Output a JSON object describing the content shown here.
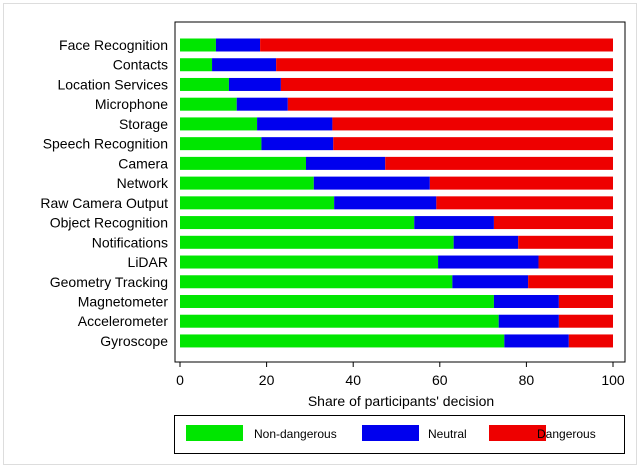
{
  "chart_data": {
    "type": "bar",
    "orientation": "horizontal",
    "stacked": true,
    "categories": [
      "Face Recognition",
      "Contacts",
      "Location Services",
      "Microphone",
      "Storage",
      "Speech Recognition",
      "Camera",
      "Network",
      "Raw Camera Output",
      "Object Recognition",
      "Notifications",
      "LiDAR",
      "Geometry Tracking",
      "Magnetometer",
      "Accelerometer",
      "Gyroscope"
    ],
    "series": [
      {
        "name": "Non-dangerous",
        "color": "#00e600",
        "values": [
          8.3,
          7.4,
          11.3,
          13.1,
          17.8,
          18.8,
          29.1,
          30.9,
          35.6,
          54.1,
          63.2,
          59.6,
          62.9,
          72.5,
          73.6,
          74.9
        ]
      },
      {
        "name": "Neutral",
        "color": "#0000ee",
        "values": [
          10.2,
          14.8,
          12.0,
          11.8,
          17.4,
          16.6,
          18.3,
          26.8,
          23.6,
          18.4,
          14.9,
          23.2,
          17.5,
          15.0,
          13.9,
          14.9
        ]
      },
      {
        "name": "Dangerous",
        "color": "#ee0000",
        "values": [
          81.5,
          77.8,
          76.7,
          75.1,
          64.8,
          64.6,
          52.6,
          42.3,
          40.8,
          27.5,
          21.9,
          17.2,
          19.6,
          12.5,
          12.5,
          10.2
        ]
      }
    ],
    "xlabel": "Share of participants' decision",
    "xlim": [
      0,
      100
    ],
    "xticks": [
      0,
      20,
      40,
      60,
      80,
      100
    ],
    "grid": false,
    "legend_position": "bottom"
  }
}
